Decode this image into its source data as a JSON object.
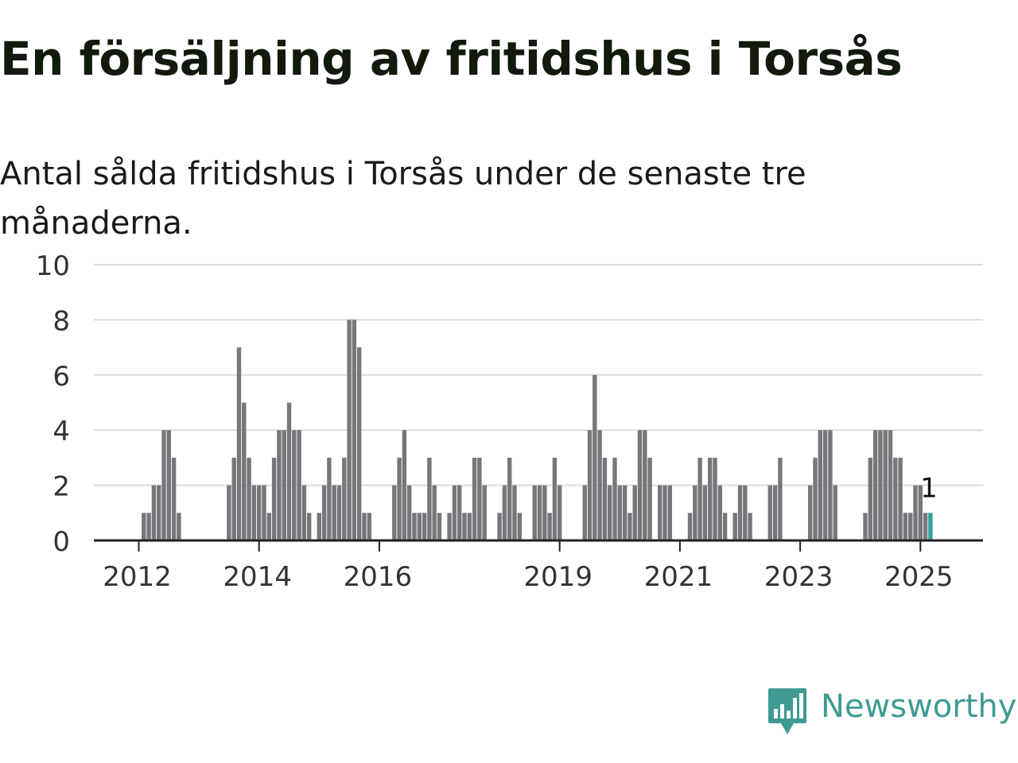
{
  "title": "En försäljning av fritidshus i Torsås",
  "subtitle": "Antal sålda fritidshus i Torsås under de senaste tre månaderna.",
  "brand": {
    "name": "Newsworthy",
    "color": "#3f9b92",
    "icon": "newsworthy-logo-icon"
  },
  "colors": {
    "bar": "#77767b",
    "highlight": "#2fa29a",
    "grid": "#dcdcdc",
    "axis": "#222222"
  },
  "chart_data": {
    "type": "bar",
    "ylim": [
      0,
      10
    ],
    "y_ticks": [
      0,
      2,
      4,
      6,
      8,
      10
    ],
    "x_tick_labels": [
      {
        "label": "2012",
        "index": 0
      },
      {
        "label": "2014",
        "index": 24
      },
      {
        "label": "2016",
        "index": 48
      },
      {
        "label": "2019",
        "index": 84
      },
      {
        "label": "2021",
        "index": 108
      },
      {
        "label": "2023",
        "index": 132
      },
      {
        "label": "2025",
        "index": 156
      }
    ],
    "values": [
      0,
      1,
      1,
      2,
      2,
      4,
      4,
      3,
      1,
      0,
      0,
      0,
      0,
      0,
      0,
      0,
      0,
      0,
      2,
      3,
      7,
      5,
      3,
      2,
      2,
      2,
      1,
      3,
      4,
      4,
      5,
      4,
      4,
      2,
      1,
      0,
      1,
      2,
      3,
      2,
      2,
      3,
      8,
      8,
      7,
      1,
      1,
      0,
      0,
      0,
      0,
      2,
      3,
      4,
      2,
      1,
      1,
      1,
      3,
      2,
      1,
      0,
      1,
      2,
      2,
      1,
      1,
      3,
      3,
      2,
      0,
      0,
      1,
      2,
      3,
      2,
      1,
      0,
      0,
      2,
      2,
      2,
      1,
      3,
      2,
      0,
      0,
      0,
      0,
      2,
      4,
      6,
      4,
      3,
      2,
      3,
      2,
      2,
      1,
      2,
      4,
      4,
      3,
      0,
      2,
      2,
      2,
      0,
      0,
      0,
      1,
      2,
      3,
      2,
      3,
      3,
      2,
      1,
      0,
      1,
      2,
      2,
      1,
      0,
      0,
      0,
      2,
      2,
      3,
      0,
      0,
      0,
      0,
      0,
      2,
      3,
      4,
      4,
      4,
      2,
      0,
      0,
      0,
      0,
      0,
      1,
      3,
      4,
      4,
      4,
      4,
      3,
      3,
      1,
      1,
      2,
      2,
      1,
      1
    ],
    "highlight_index": 158,
    "highlight_label": "1"
  }
}
